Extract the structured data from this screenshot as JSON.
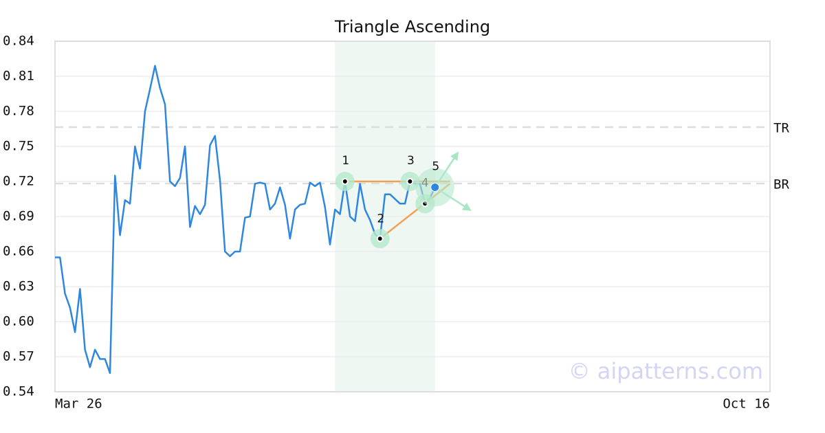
{
  "chart_data": {
    "type": "line",
    "title": "Triangle Ascending",
    "x": [
      0,
      1,
      2,
      3,
      4,
      5,
      6,
      7,
      8,
      9,
      10,
      11,
      12,
      13,
      14,
      15,
      16,
      17,
      18,
      19,
      20,
      21,
      22,
      23,
      24,
      25,
      26,
      27,
      28,
      29,
      30,
      31,
      32,
      33,
      34,
      35,
      36,
      37,
      38,
      39,
      40,
      41,
      42,
      43,
      44,
      45,
      46,
      47,
      48,
      49,
      50,
      51,
      52,
      53,
      54,
      55,
      56,
      57,
      58,
      59,
      60,
      61,
      62,
      63,
      64,
      65,
      66,
      67,
      68,
      69,
      70,
      71,
      72,
      73,
      74,
      75,
      76
    ],
    "values": [
      0.655,
      0.655,
      0.624,
      0.612,
      0.591,
      0.628,
      0.576,
      0.561,
      0.576,
      0.568,
      0.568,
      0.556,
      0.725,
      0.674,
      0.704,
      0.701,
      0.75,
      0.731,
      0.78,
      0.799,
      0.819,
      0.8,
      0.786,
      0.72,
      0.716,
      0.723,
      0.75,
      0.681,
      0.699,
      0.692,
      0.7,
      0.751,
      0.759,
      0.721,
      0.66,
      0.656,
      0.66,
      0.66,
      0.689,
      0.69,
      0.718,
      0.719,
      0.718,
      0.696,
      0.701,
      0.715,
      0.7,
      0.671,
      0.696,
      0.7,
      0.701,
      0.719,
      0.716,
      0.719,
      0.698,
      0.666,
      0.696,
      0.692,
      0.72,
      0.69,
      0.686,
      0.718,
      0.696,
      0.687,
      0.675,
      0.671,
      0.709,
      0.709,
      0.705,
      0.701,
      0.701,
      0.72,
      0.718,
      0.718,
      0.701,
      0.706,
      0.715
    ],
    "color": "#2e86de",
    "xlim": [
      0,
      143
    ],
    "xticks": [
      {
        "value": 0,
        "label": "Mar 26"
      },
      {
        "value": 143,
        "label": "Oct 16"
      }
    ],
    "ylim": [
      0.54,
      0.84
    ],
    "yticks": [
      0.54,
      0.57,
      {
        "value": 0.6,
        "label": "0.60"
      },
      0.63,
      0.66,
      0.69,
      0.72,
      0.75,
      0.78,
      0.81,
      0.84
    ],
    "grid": true,
    "highlight": [
      56,
      76
    ],
    "levels": [
      {
        "label": "TR",
        "value": 0.7665
      },
      {
        "label": "BR",
        "value": 0.7182
      }
    ],
    "pattern_points": [
      {
        "label": "1",
        "x": 58,
        "y": 0.72
      },
      {
        "label": "2",
        "x": 65,
        "y": 0.671
      },
      {
        "label": "3",
        "x": 71,
        "y": 0.72
      },
      {
        "label": "4",
        "x": 74,
        "y": 0.701
      },
      {
        "label": "5",
        "x": 76,
        "y": 0.715
      }
    ],
    "pattern_lines": [
      {
        "x": [
          58,
          79
        ],
        "y": [
          0.72,
          0.72
        ]
      },
      {
        "x": [
          65,
          79
        ],
        "y": [
          0.671,
          0.718
        ]
      }
    ],
    "pattern_color": "#f0a050",
    "watermark": "© aipatterns.com"
  }
}
